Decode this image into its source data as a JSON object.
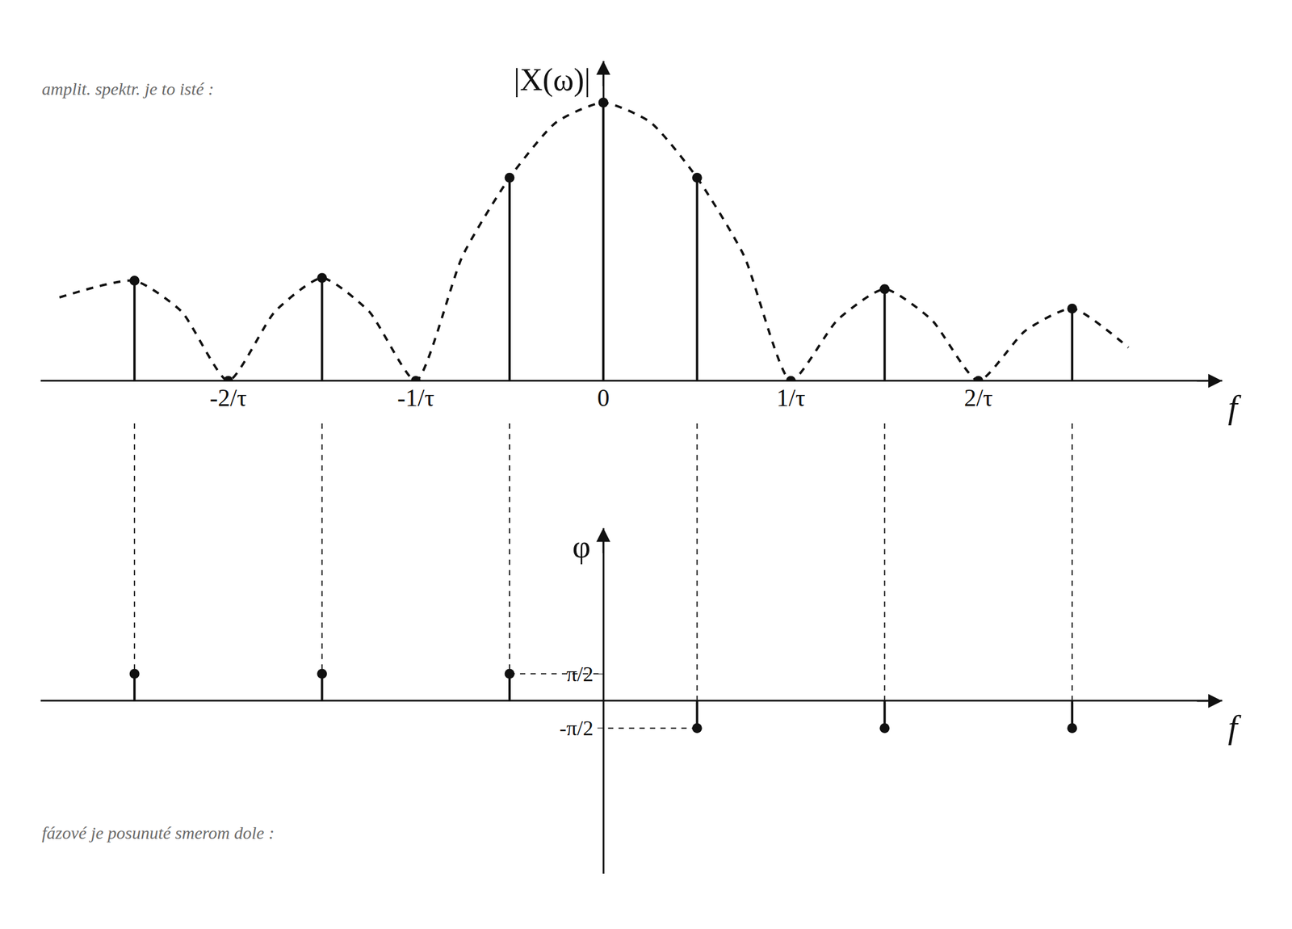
{
  "chart_data": [
    {
      "type": "stem",
      "y_label": "|X(ω)|",
      "x_label": "f",
      "annotations": [
        "amplit. spektr. je to isté :"
      ],
      "xlim": [
        -3,
        3.3
      ],
      "ylim": [
        0,
        1.15
      ],
      "xticks": [
        {
          "value": -2,
          "label": "-2/τ"
        },
        {
          "value": -1,
          "label": "-1/τ"
        },
        0,
        {
          "value": 1,
          "label": "1/τ"
        },
        {
          "value": 2,
          "label": "2/τ"
        }
      ],
      "yticks": [],
      "tick_labels": "x",
      "grid": false,
      "series": [
        {
          "type": "stem",
          "color": "#111111",
          "marker": "circle",
          "x": [
            -2.5,
            -2,
            -1.5,
            -1,
            -0.5,
            0,
            0.5,
            1,
            1.5,
            2,
            2.5
          ],
          "values": [
            0.36,
            0,
            0.37,
            0,
            0.73,
            1,
            0.73,
            0,
            0.33,
            0,
            0.26
          ]
        },
        {
          "type": "line",
          "color": "#111111",
          "line_style": "dashed",
          "x": [
            -2.9,
            -2.5,
            -2.25,
            -2,
            -1.75,
            -1.5,
            -1.25,
            -1,
            -0.75,
            -0.5,
            -0.25,
            0,
            0.25,
            0.5,
            0.75,
            1,
            1.25,
            1.5,
            1.75,
            2,
            2.25,
            2.5,
            2.8
          ],
          "values": [
            0.3,
            0.36,
            0.25,
            0,
            0.25,
            0.37,
            0.25,
            0,
            0.45,
            0.73,
            0.93,
            1,
            0.93,
            0.73,
            0.45,
            0,
            0.22,
            0.33,
            0.22,
            0,
            0.18,
            0.26,
            0.12
          ]
        }
      ]
    },
    {
      "type": "stem",
      "y_label": "φ",
      "x_label": "f",
      "annotations": [
        "fázové je posunuté smerom dole :"
      ],
      "xlim": [
        -3,
        3.3
      ],
      "ylim": [
        -10,
        10
      ],
      "xticks": [],
      "yticks": [
        {
          "value": 1.5708,
          "label": "π/2"
        },
        {
          "value": -1.5708,
          "label": "-π/2"
        }
      ],
      "tick_labels": "y",
      "grid": false,
      "series": [
        {
          "type": "stem",
          "color": "#111111",
          "marker": "circle",
          "x": [
            -2.5,
            -1.5,
            -0.5,
            0.5,
            1.5,
            2.5
          ],
          "values": [
            1.5708,
            1.5708,
            1.5708,
            -1.5708,
            -1.5708,
            -1.5708
          ]
        }
      ]
    }
  ]
}
